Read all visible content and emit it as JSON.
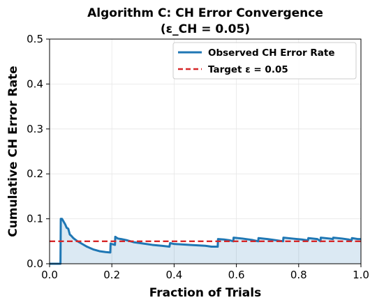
{
  "chart_data": {
    "type": "line",
    "title": "Algorithm C: CH Error Convergence",
    "subtitle": "(ε_CH = 0.05)",
    "xlabel": "Fraction of Trials",
    "ylabel": "Cumulative CH Error Rate",
    "xlim": [
      0.0,
      1.0
    ],
    "ylim": [
      0.0,
      0.5
    ],
    "xticks": [
      0.0,
      0.2,
      0.4,
      0.6,
      0.8,
      1.0
    ],
    "xtick_labels": [
      "0.0",
      "0.2",
      "0.4",
      "0.6",
      "0.8",
      "1.0"
    ],
    "yticks": [
      0.0,
      0.1,
      0.2,
      0.3,
      0.4,
      0.5
    ],
    "ytick_labels": [
      "0.0",
      "0.1",
      "0.2",
      "0.3",
      "0.4",
      "0.5"
    ],
    "grid": true,
    "legend_position": "top-right",
    "series": [
      {
        "name": "Observed CH Error Rate",
        "color": "#1f77b4",
        "fill": true,
        "x": [
          0.0,
          0.02,
          0.035,
          0.036,
          0.04,
          0.045,
          0.05,
          0.055,
          0.06,
          0.065,
          0.07,
          0.075,
          0.08,
          0.09,
          0.1,
          0.12,
          0.14,
          0.16,
          0.18,
          0.195,
          0.196,
          0.2,
          0.21,
          0.211,
          0.215,
          0.22,
          0.23,
          0.25,
          0.27,
          0.3,
          0.33,
          0.36,
          0.385,
          0.387,
          0.4,
          0.45,
          0.5,
          0.52,
          0.54,
          0.541,
          0.56,
          0.58,
          0.59,
          0.591,
          0.62,
          0.65,
          0.67,
          0.671,
          0.7,
          0.73,
          0.75,
          0.751,
          0.78,
          0.81,
          0.83,
          0.831,
          0.86,
          0.87,
          0.871,
          0.9,
          0.91,
          0.911,
          0.94,
          0.96,
          0.97,
          0.971,
          0.99,
          1.0
        ],
        "y": [
          0.0,
          0.0,
          0.0,
          0.1,
          0.1,
          0.094,
          0.088,
          0.08,
          0.078,
          0.065,
          0.062,
          0.058,
          0.055,
          0.05,
          0.046,
          0.038,
          0.032,
          0.028,
          0.026,
          0.025,
          0.045,
          0.044,
          0.042,
          0.06,
          0.058,
          0.056,
          0.055,
          0.052,
          0.048,
          0.045,
          0.042,
          0.04,
          0.038,
          0.046,
          0.044,
          0.042,
          0.04,
          0.038,
          0.038,
          0.055,
          0.054,
          0.052,
          0.05,
          0.058,
          0.056,
          0.053,
          0.05,
          0.057,
          0.055,
          0.052,
          0.05,
          0.058,
          0.056,
          0.054,
          0.052,
          0.057,
          0.055,
          0.05,
          0.058,
          0.056,
          0.055,
          0.058,
          0.056,
          0.054,
          0.052,
          0.057,
          0.055,
          0.055
        ]
      },
      {
        "name": "Target ε = 0.05",
        "color": "#d62728",
        "dashed": true,
        "x": [
          0.0,
          1.0
        ],
        "y": [
          0.05,
          0.05
        ]
      }
    ]
  }
}
